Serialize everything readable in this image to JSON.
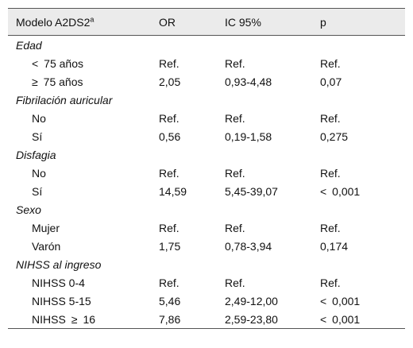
{
  "header": {
    "model": "Modelo A2DS2",
    "model_sup": "a",
    "or": "OR",
    "ic": "IC 95%",
    "p": "p"
  },
  "rows": [
    {
      "type": "group",
      "label": "Edad"
    },
    {
      "type": "sub",
      "label": "< 75 años",
      "or": "Ref.",
      "ic": "Ref.",
      "p": "Ref."
    },
    {
      "type": "sub",
      "label": "≥ 75 años",
      "or": "2,05",
      "ic": "0,93-4,48",
      "p": "0,07"
    },
    {
      "type": "group",
      "label": "Fibrilación auricular"
    },
    {
      "type": "sub",
      "label": "No",
      "or": "Ref.",
      "ic": "Ref.",
      "p": "Ref."
    },
    {
      "type": "sub",
      "label": "Sí",
      "or": "0,56",
      "ic": "0,19-1,58",
      "p": "0,275"
    },
    {
      "type": "group",
      "label": "Disfagia"
    },
    {
      "type": "sub",
      "label": "No",
      "or": "Ref.",
      "ic": "Ref.",
      "p": "Ref."
    },
    {
      "type": "sub",
      "label": "Sí",
      "or": "14,59",
      "ic": "5,45-39,07",
      "p": "< 0,001"
    },
    {
      "type": "group",
      "label": "Sexo"
    },
    {
      "type": "sub",
      "label": "Mujer",
      "or": "Ref.",
      "ic": "Ref.",
      "p": "Ref."
    },
    {
      "type": "sub",
      "label": "Varón",
      "or": "1,75",
      "ic": "0,78-3,94",
      "p": "0,174"
    },
    {
      "type": "group",
      "label": "NIHSS al ingreso"
    },
    {
      "type": "sub",
      "label": "NIHSS 0-4",
      "or": "Ref.",
      "ic": "Ref.",
      "p": "Ref."
    },
    {
      "type": "sub",
      "label": "NIHSS 5-15",
      "or": "5,46",
      "ic": "2,49-12,00",
      "p": "< 0,001"
    },
    {
      "type": "sub",
      "label": "NIHSS ≥ 16",
      "or": "7,86",
      "ic": "2,59-23,80",
      "p": "< 0,001"
    }
  ]
}
